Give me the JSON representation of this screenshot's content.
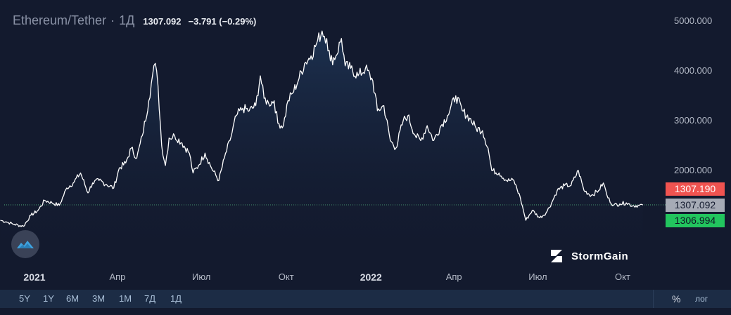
{
  "header": {
    "symbol": "Ethereum/Tether",
    "separator": "·",
    "interval": "1Д",
    "last_price": "1307.092",
    "change": "−3.791 (−0.29%)"
  },
  "price_tags": {
    "high": "1307.190",
    "last": "1307.092",
    "low": "1306.994"
  },
  "watermark": {
    "brand": "StormGain"
  },
  "colors": {
    "background": "#131a2e",
    "line": "#ffffff",
    "tag_high": "#f05350",
    "tag_last": "#a6abb6",
    "tag_low": "#22c55e",
    "toolbar": "#1c2c45"
  },
  "toolbar": {
    "ranges": [
      "5Y",
      "1Y",
      "6M",
      "3M",
      "1M",
      "7Д",
      "1Д"
    ],
    "percent": "%",
    "log": "лог"
  },
  "chart_data": {
    "type": "area",
    "title": "",
    "xlabel": "",
    "ylabel": "",
    "ylim": [
      0,
      5300
    ],
    "y_ticks": [
      2000,
      3000,
      4000,
      5000
    ],
    "y_tick_labels": [
      "2000.000",
      "3000.000",
      "4000.000",
      "5000.000"
    ],
    "x_ticks": [
      {
        "date": "2021-01-01",
        "label": "2021",
        "major": true
      },
      {
        "date": "2021-04-01",
        "label": "Апр",
        "major": false
      },
      {
        "date": "2021-07-01",
        "label": "Июл",
        "major": false
      },
      {
        "date": "2021-10-01",
        "label": "Окт",
        "major": false
      },
      {
        "date": "2022-01-01",
        "label": "2022",
        "major": true
      },
      {
        "date": "2022-04-01",
        "label": "Апр",
        "major": false
      },
      {
        "date": "2022-07-01",
        "label": "Июл",
        "major": false
      },
      {
        "date": "2022-10-01",
        "label": "Окт",
        "major": false
      }
    ],
    "current_price": 1307.092,
    "grid": false,
    "series": [
      {
        "points": [
          [
            "2020-11-25",
            1000
          ],
          [
            "2020-12-01",
            970
          ],
          [
            "2020-12-10",
            920
          ],
          [
            "2020-12-20",
            880
          ],
          [
            "2020-12-28",
            1100
          ],
          [
            "2021-01-05",
            1200
          ],
          [
            "2021-01-12",
            1400
          ],
          [
            "2021-01-20",
            1350
          ],
          [
            "2021-01-28",
            1300
          ],
          [
            "2021-02-05",
            1650
          ],
          [
            "2021-02-12",
            1750
          ],
          [
            "2021-02-20",
            1950
          ],
          [
            "2021-02-28",
            1550
          ],
          [
            "2021-03-05",
            1750
          ],
          [
            "2021-03-12",
            1800
          ],
          [
            "2021-03-20",
            1720
          ],
          [
            "2021-03-28",
            1650
          ],
          [
            "2021-04-03",
            2050
          ],
          [
            "2021-04-10",
            2150
          ],
          [
            "2021-04-16",
            2450
          ],
          [
            "2021-04-22",
            2250
          ],
          [
            "2021-04-28",
            2700
          ],
          [
            "2021-05-05",
            3400
          ],
          [
            "2021-05-09",
            3900
          ],
          [
            "2021-05-12",
            4150
          ],
          [
            "2021-05-15",
            3700
          ],
          [
            "2021-05-19",
            2500
          ],
          [
            "2021-05-23",
            2100
          ],
          [
            "2021-05-27",
            2650
          ],
          [
            "2021-06-02",
            2700
          ],
          [
            "2021-06-10",
            2550
          ],
          [
            "2021-06-18",
            2350
          ],
          [
            "2021-06-22",
            1950
          ],
          [
            "2021-06-28",
            2100
          ],
          [
            "2021-07-05",
            2350
          ],
          [
            "2021-07-12",
            2050
          ],
          [
            "2021-07-20",
            1800
          ],
          [
            "2021-07-26",
            2250
          ],
          [
            "2021-08-01",
            2600
          ],
          [
            "2021-08-08",
            3100
          ],
          [
            "2021-08-15",
            3250
          ],
          [
            "2021-08-22",
            3200
          ],
          [
            "2021-08-29",
            3300
          ],
          [
            "2021-09-03",
            3900
          ],
          [
            "2021-09-07",
            3450
          ],
          [
            "2021-09-12",
            3350
          ],
          [
            "2021-09-18",
            3400
          ],
          [
            "2021-09-22",
            2950
          ],
          [
            "2021-09-28",
            2900
          ],
          [
            "2021-10-03",
            3400
          ],
          [
            "2021-10-08",
            3550
          ],
          [
            "2021-10-15",
            3850
          ],
          [
            "2021-10-21",
            4150
          ],
          [
            "2021-10-28",
            4300
          ],
          [
            "2021-11-03",
            4550
          ],
          [
            "2021-11-09",
            4800
          ],
          [
            "2021-11-14",
            4650
          ],
          [
            "2021-11-18",
            4200
          ],
          [
            "2021-11-24",
            4300
          ],
          [
            "2021-11-30",
            4650
          ],
          [
            "2021-12-04",
            4100
          ],
          [
            "2021-12-10",
            4050
          ],
          [
            "2021-12-18",
            3900
          ],
          [
            "2021-12-26",
            4050
          ],
          [
            "2022-01-03",
            3800
          ],
          [
            "2022-01-08",
            3200
          ],
          [
            "2022-01-15",
            3300
          ],
          [
            "2022-01-22",
            2600
          ],
          [
            "2022-01-28",
            2450
          ],
          [
            "2022-02-05",
            3000
          ],
          [
            "2022-02-10",
            3100
          ],
          [
            "2022-02-18",
            2700
          ],
          [
            "2022-02-24",
            2600
          ],
          [
            "2022-03-03",
            2900
          ],
          [
            "2022-03-10",
            2600
          ],
          [
            "2022-03-18",
            2900
          ],
          [
            "2022-03-25",
            3100
          ],
          [
            "2022-04-03",
            3500
          ],
          [
            "2022-04-10",
            3200
          ],
          [
            "2022-04-18",
            3050
          ],
          [
            "2022-04-25",
            2850
          ],
          [
            "2022-05-02",
            2800
          ],
          [
            "2022-05-08",
            2450
          ],
          [
            "2022-05-12",
            2000
          ],
          [
            "2022-05-20",
            1950
          ],
          [
            "2022-05-28",
            1800
          ],
          [
            "2022-06-05",
            1800
          ],
          [
            "2022-06-12",
            1450
          ],
          [
            "2022-06-18",
            1000
          ],
          [
            "2022-06-25",
            1200
          ],
          [
            "2022-07-03",
            1050
          ],
          [
            "2022-07-10",
            1150
          ],
          [
            "2022-07-16",
            1350
          ],
          [
            "2022-07-22",
            1600
          ],
          [
            "2022-07-30",
            1700
          ],
          [
            "2022-08-06",
            1700
          ],
          [
            "2022-08-14",
            2000
          ],
          [
            "2022-08-20",
            1600
          ],
          [
            "2022-08-28",
            1500
          ],
          [
            "2022-09-05",
            1600
          ],
          [
            "2022-09-10",
            1750
          ],
          [
            "2022-09-15",
            1450
          ],
          [
            "2022-09-21",
            1300
          ],
          [
            "2022-09-28",
            1330
          ],
          [
            "2022-10-05",
            1350
          ],
          [
            "2022-10-12",
            1290
          ],
          [
            "2022-10-19",
            1300
          ],
          [
            "2022-10-23",
            1307
          ]
        ]
      }
    ]
  }
}
